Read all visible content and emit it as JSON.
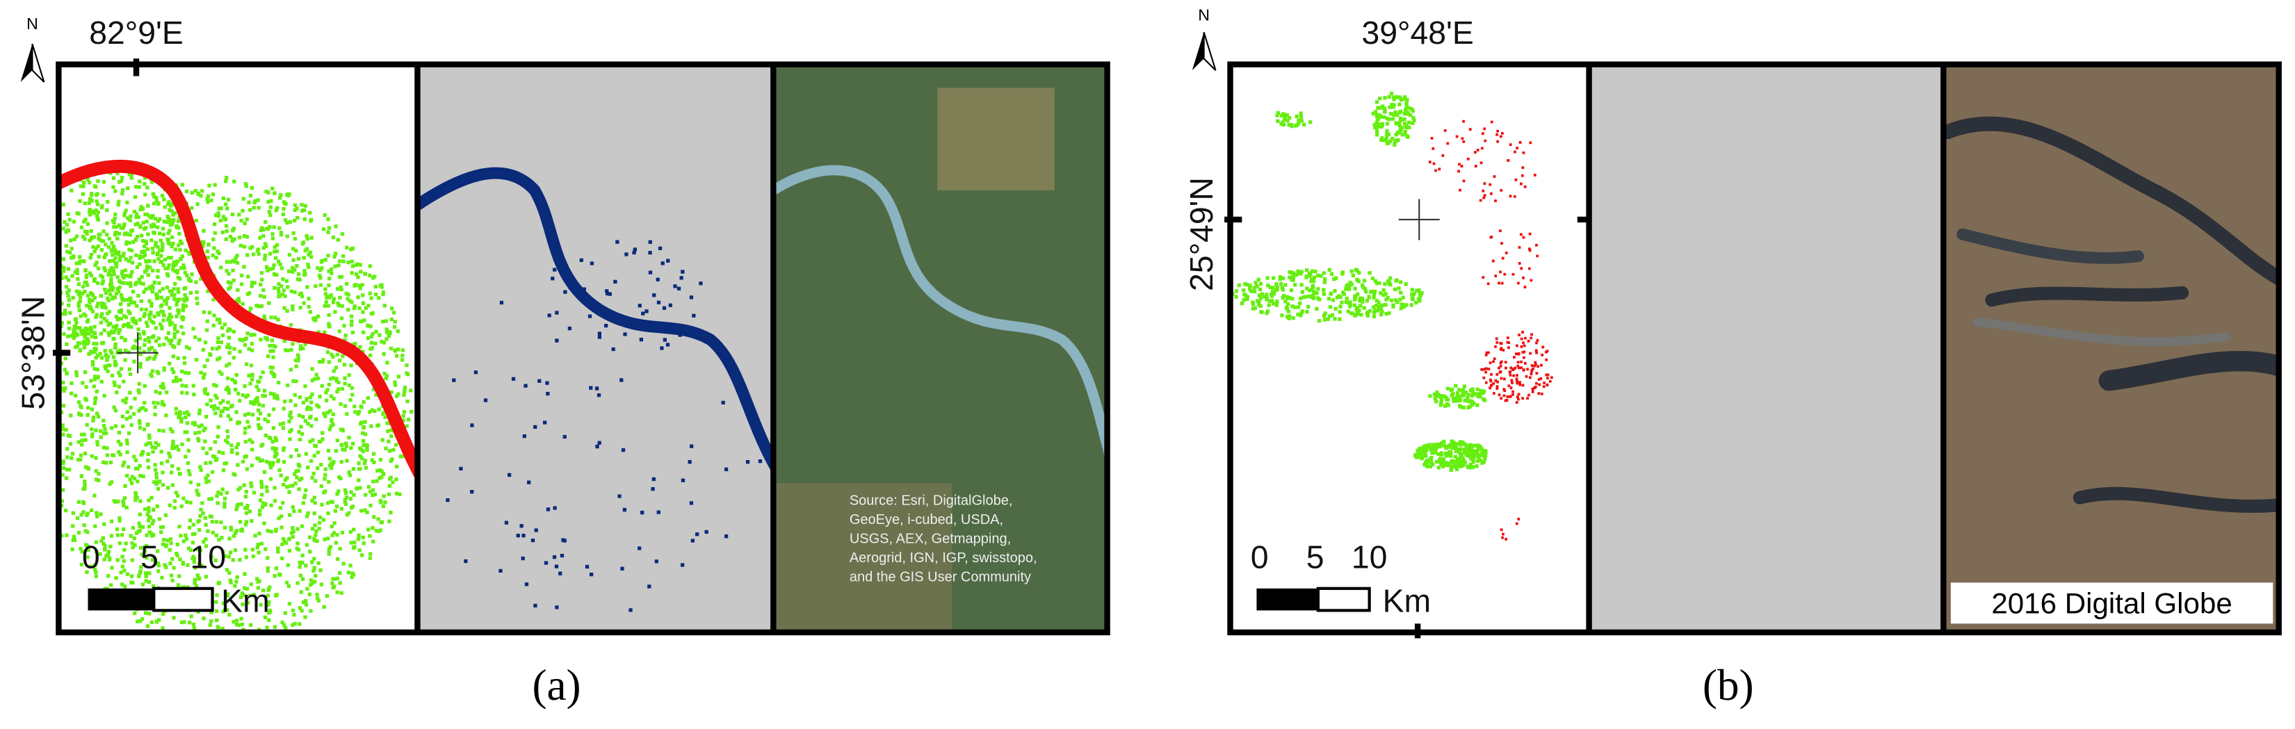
{
  "panels": [
    {
      "north": "N",
      "longitude": "82°9'E",
      "latitude": "53°38'N",
      "scale": {
        "ticks": [
          "0",
          "5",
          "10"
        ],
        "unit": "Km"
      },
      "source": [
        "Source: Esri, DigitalGlobe,",
        "GeoEye, i-cubed, USDA,",
        "USGS, AEX, Getmapping,",
        "Aerogrid, IGN, IGP, swisstopo,",
        "and the GIS User Community"
      ],
      "caption": "(a)"
    },
    {
      "north": "N",
      "longitude": "39°48'E",
      "latitude": "25°49'N",
      "scale": {
        "ticks": [
          "0",
          "5",
          "10"
        ],
        "unit": "Km"
      },
      "credit": "2016 Digital Globe",
      "caption": "(b)"
    }
  ]
}
